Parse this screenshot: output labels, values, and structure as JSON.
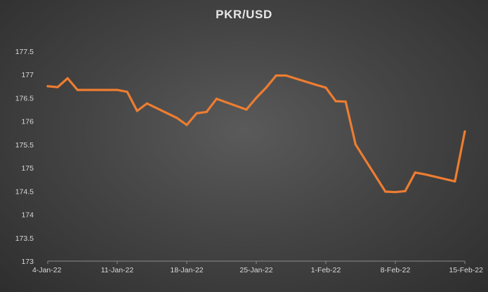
{
  "chart_data": {
    "type": "line",
    "title": "PKR/USD",
    "xlabel": "",
    "ylabel": "",
    "ylim": [
      173,
      177.5
    ],
    "yticks": [
      173,
      173.5,
      174,
      174.5,
      175,
      175.5,
      176,
      176.5,
      177,
      177.5
    ],
    "ytick_labels": [
      "173",
      "173.5",
      "174",
      "174.5",
      "175",
      "175.5",
      "176",
      "176.5",
      "177",
      "177.5"
    ],
    "xlim": [
      "2022-01-04",
      "2022-02-15"
    ],
    "xticks": [
      "2022-01-04",
      "2022-01-11",
      "2022-01-18",
      "2022-01-25",
      "2022-02-01",
      "2022-02-08",
      "2022-02-15"
    ],
    "xtick_labels": [
      "4-Jan-22",
      "11-Jan-22",
      "18-Jan-22",
      "25-Jan-22",
      "1-Feb-22",
      "8-Feb-22",
      "15-Feb-22"
    ],
    "grid": false,
    "legend": "none",
    "line_color": "#ed7d31",
    "series": [
      {
        "x": [
          "2022-01-04",
          "2022-01-05",
          "2022-01-06",
          "2022-01-07",
          "2022-01-10",
          "2022-01-11",
          "2022-01-12",
          "2022-01-13",
          "2022-01-14",
          "2022-01-17",
          "2022-01-18",
          "2022-01-19",
          "2022-01-20",
          "2022-01-21",
          "2022-01-24",
          "2022-01-25",
          "2022-01-26",
          "2022-01-27",
          "2022-01-28",
          "2022-01-31",
          "2022-02-01",
          "2022-02-02",
          "2022-02-03",
          "2022-02-04",
          "2022-02-07",
          "2022-02-08",
          "2022-02-09",
          "2022-02-10",
          "2022-02-11",
          "2022-02-14",
          "2022-02-15"
        ],
        "values": [
          176.75,
          176.73,
          176.92,
          176.67,
          176.67,
          176.67,
          176.63,
          176.22,
          176.38,
          176.07,
          175.92,
          176.17,
          176.2,
          176.48,
          176.25,
          176.5,
          176.72,
          176.98,
          176.98,
          176.78,
          176.72,
          176.43,
          176.42,
          175.5,
          174.49,
          174.48,
          174.5,
          174.9,
          174.86,
          174.71,
          175.78
        ]
      }
    ]
  }
}
